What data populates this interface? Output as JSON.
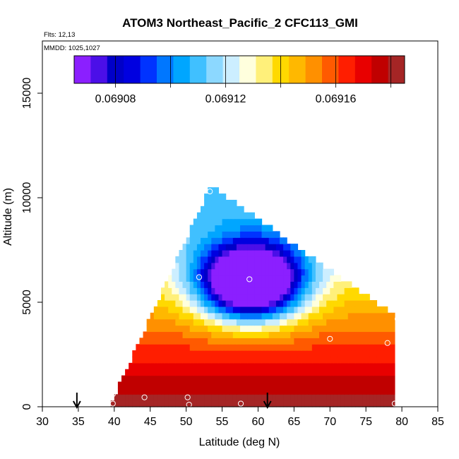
{
  "chart_data": {
    "type": "heatmap",
    "title": "ATOM3 Northeast_Pacific_2 CFC113_GMI",
    "flights_text": "Flts: 12,13",
    "mmdd_text": "MMDD: 1025,1027",
    "xlabel": "Latitude (deg N)",
    "ylabel": "Altitude (m)",
    "xlim": [
      30,
      85
    ],
    "ylim": [
      0,
      17500
    ],
    "x_ticks": [
      "30",
      "35",
      "40",
      "45",
      "50",
      "55",
      "60",
      "65",
      "70",
      "75",
      "80",
      "85"
    ],
    "y_ticks": [
      "0",
      "5000",
      "10000",
      "15000"
    ],
    "colorbar": {
      "range": [
        0.069065,
        0.069185
      ],
      "tick_labels": [
        "0.06908",
        "0.06912",
        "0.06916"
      ],
      "tick_values": [
        0.06908,
        0.06912,
        0.06916
      ],
      "colors": [
        "#8B1FFF",
        "#4B0FE8",
        "#0000C8",
        "#0000E0",
        "#0033FF",
        "#0077FF",
        "#00A6FF",
        "#40C0FF",
        "#8CD8FF",
        "#CCEEFF",
        "#FFFFDD",
        "#FFF07A",
        "#FFD900",
        "#FFB800",
        "#FF9000",
        "#FF5A00",
        "#FF1E00",
        "#E80000",
        "#C00000",
        "#A52525"
      ]
    },
    "field_domain": {
      "apex_latitude": 53.5,
      "apex_altitude": 10500,
      "left_base_latitude": 39.5,
      "right_edge_latitude": 79,
      "right_edge_top_altitude": 4300,
      "min_center_latitude": 59,
      "min_center_altitude": 6000
    },
    "observations": [
      {
        "lat": 39.8,
        "alt": 1300
      },
      {
        "lat": 39.8,
        "alt": 600
      },
      {
        "lat": 39.8,
        "alt": 150
      },
      {
        "lat": 44.2,
        "alt": 450
      },
      {
        "lat": 50.2,
        "alt": 450
      },
      {
        "lat": 50.4,
        "alt": 100
      },
      {
        "lat": 51.8,
        "alt": 6200
      },
      {
        "lat": 53.3,
        "alt": 10300
      },
      {
        "lat": 57.6,
        "alt": 150
      },
      {
        "lat": 58.8,
        "alt": 6100
      },
      {
        "lat": 70.0,
        "alt": 3250
      },
      {
        "lat": 78.0,
        "alt": 3050
      },
      {
        "lat": 79.4,
        "alt": 4200
      },
      {
        "lat": 79.0,
        "alt": 150
      }
    ],
    "arrows_latitude": [
      34.8,
      61.3
    ]
  }
}
